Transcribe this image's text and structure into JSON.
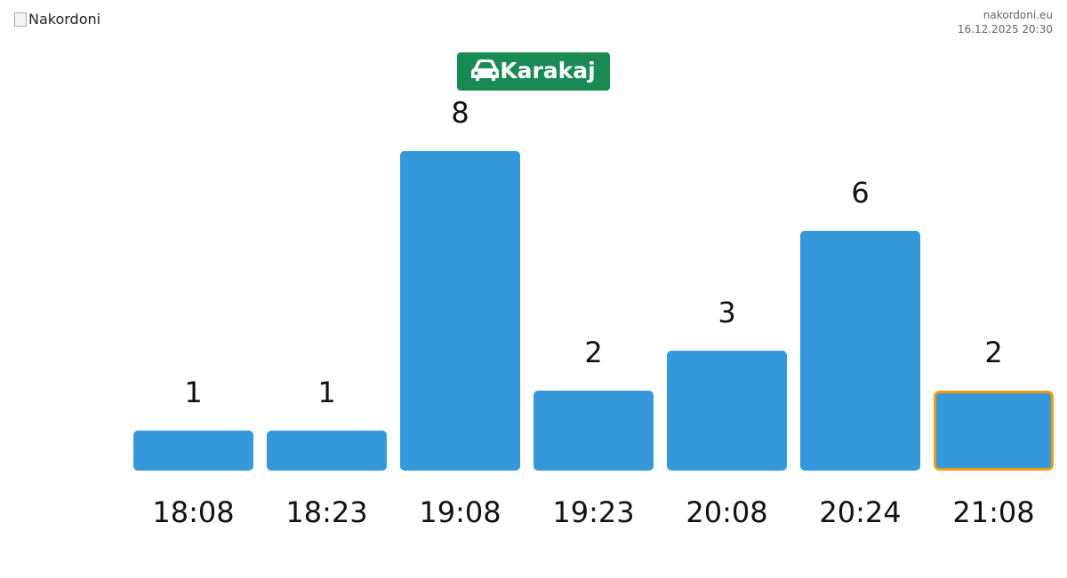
{
  "header": {
    "logo_alt": "Nakordoni",
    "site": "nakordoni.eu",
    "timestamp": "16.12.2025 20:30"
  },
  "chart_data": {
    "type": "bar",
    "title": "Karakaj",
    "categories": [
      "18:08",
      "18:23",
      "19:08",
      "19:23",
      "20:08",
      "20:24",
      "21:08"
    ],
    "values": [
      1,
      1,
      8,
      2,
      3,
      6,
      2
    ],
    "color": "#3498db",
    "highlight_index": 6,
    "highlight_color": "#f39c12",
    "title_color": "#1a8a55"
  }
}
